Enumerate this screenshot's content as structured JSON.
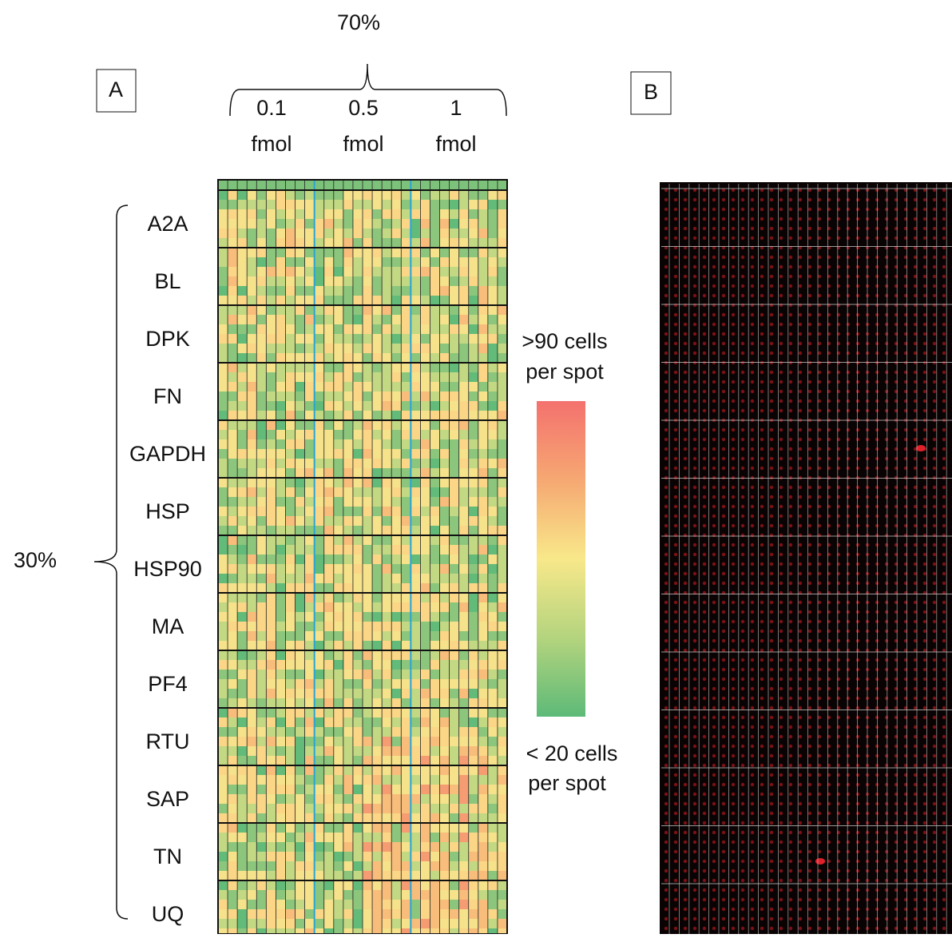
{
  "panel_a": "A",
  "panel_b": "B",
  "top_label": "70%",
  "left_label": "30%",
  "concentrations": [
    {
      "amount": "0.1",
      "unit": "fmol"
    },
    {
      "amount": "0.5",
      "unit": "fmol"
    },
    {
      "amount": "1",
      "unit": "fmol"
    }
  ],
  "rows": [
    {
      "label": "A2A",
      "color": "#e52420"
    },
    {
      "label": "BL",
      "color": "#111111"
    },
    {
      "label": "DPK",
      "color": "#111111"
    },
    {
      "label": "FN",
      "color": "#111111"
    },
    {
      "label": "GAPDH",
      "color": "#111111"
    },
    {
      "label": "HSP",
      "color": "#111111"
    },
    {
      "label": "HSP90",
      "color": "#111111"
    },
    {
      "label": "MA",
      "color": "#e52420"
    },
    {
      "label": "PF4",
      "color": "#111111"
    },
    {
      "label": "RTU",
      "color": "#111111"
    },
    {
      "label": "SAP",
      "color": "#111111"
    },
    {
      "label": "TN",
      "color": "#111111"
    },
    {
      "label": "UQ",
      "color": "#111111"
    }
  ],
  "legend": {
    "high": [
      ">90 cells",
      "per spot"
    ],
    "low": [
      "< 20 cells",
      "per spot"
    ]
  }
}
